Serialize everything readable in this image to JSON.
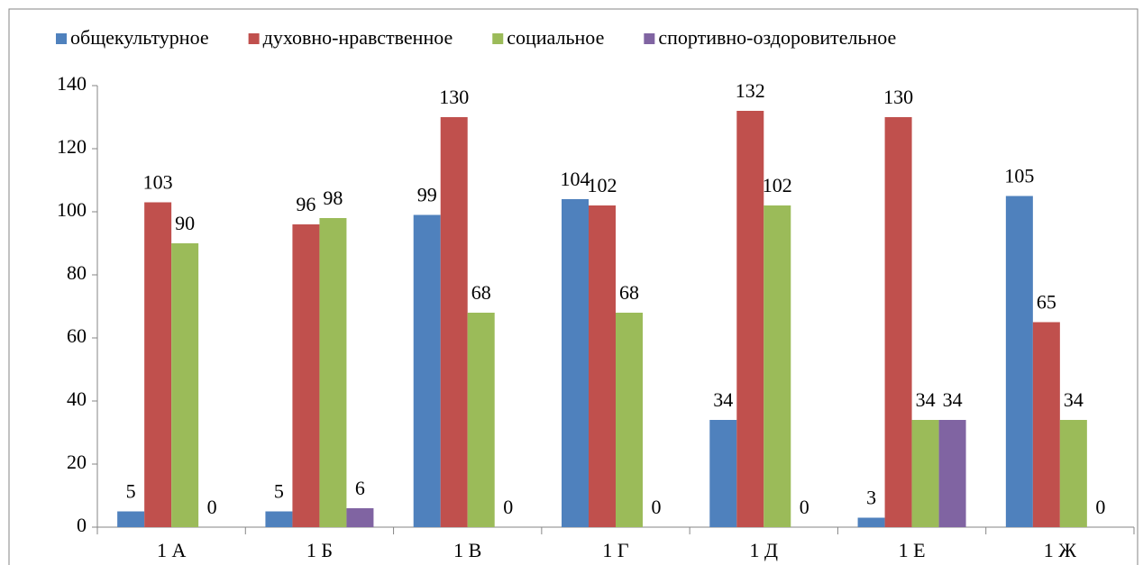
{
  "chart_data": {
    "type": "bar",
    "categories": [
      "1 А",
      "1 Б",
      "1 В",
      "1 Г",
      "1 Д",
      "1 Е",
      "1 Ж"
    ],
    "series": [
      {
        "name": "общекультурное",
        "color": "#4f81bd",
        "values": [
          5,
          5,
          99,
          104,
          34,
          3,
          105
        ]
      },
      {
        "name": "духовно-нравственное",
        "color": "#c0504d",
        "values": [
          103,
          96,
          130,
          102,
          132,
          130,
          65
        ]
      },
      {
        "name": "социальное",
        "color": "#9bbb59",
        "values": [
          90,
          98,
          68,
          68,
          102,
          34,
          34
        ]
      },
      {
        "name": "спортивно-оздоровительное",
        "color": "#8064a2",
        "values": [
          0,
          6,
          0,
          0,
          0,
          34,
          0
        ]
      }
    ],
    "ylim": [
      0,
      140
    ],
    "yticks": [
      0,
      20,
      40,
      60,
      80,
      100,
      120,
      140
    ],
    "legend": "top",
    "grid": false
  }
}
